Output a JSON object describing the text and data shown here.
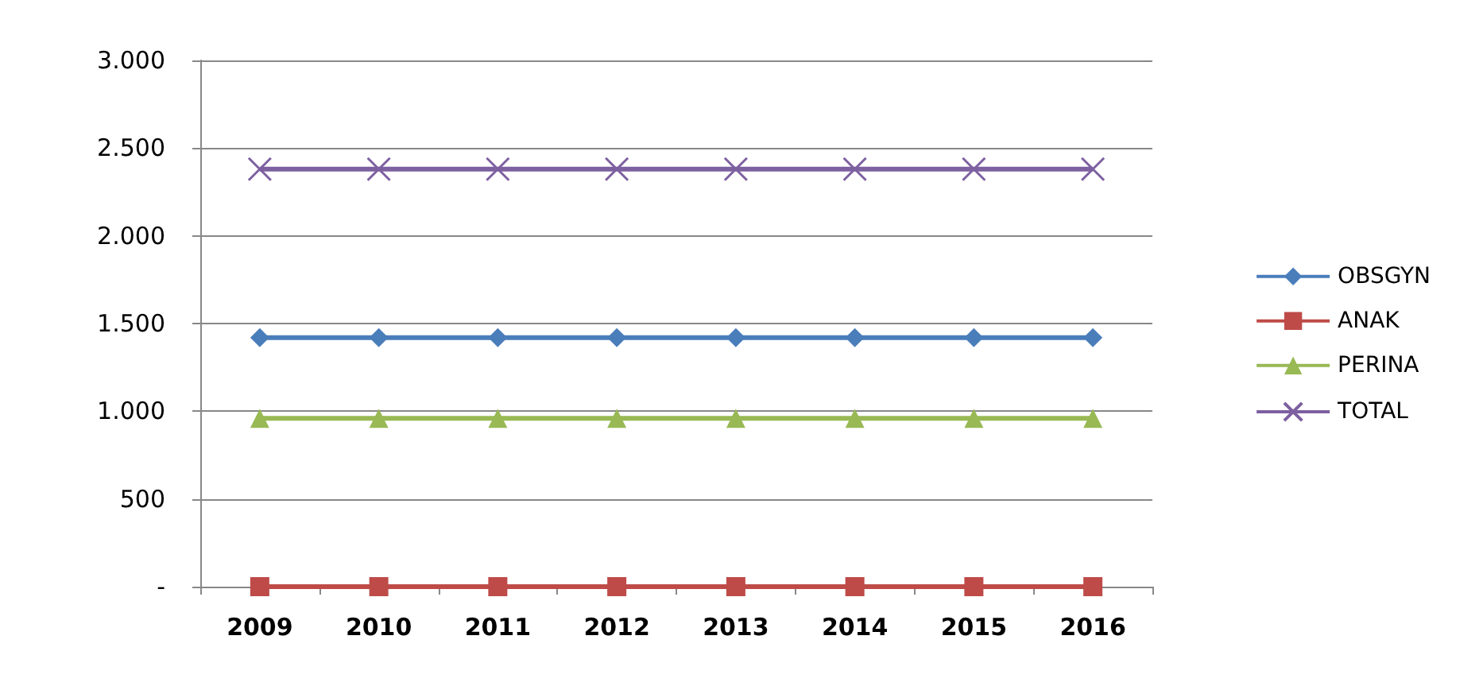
{
  "chart_data": {
    "type": "line",
    "categories": [
      "2009",
      "2010",
      "2011",
      "2012",
      "2013",
      "2014",
      "2015",
      "2016"
    ],
    "series": [
      {
        "name": "OBSGYN",
        "color": "#4a7ebb",
        "marker": "diamond",
        "values": [
          1420,
          1420,
          1420,
          1420,
          1420,
          1420,
          1420,
          1420
        ]
      },
      {
        "name": "ANAK",
        "color": "#be4b48",
        "marker": "square",
        "values": [
          0,
          0,
          0,
          0,
          0,
          0,
          0,
          0
        ]
      },
      {
        "name": "PERINA",
        "color": "#98b954",
        "marker": "triangle",
        "values": [
          960,
          960,
          960,
          960,
          960,
          960,
          960,
          960
        ]
      },
      {
        "name": "TOTAL",
        "color": "#7d60a0",
        "marker": "cross",
        "values": [
          2380,
          2380,
          2380,
          2380,
          2380,
          2380,
          2380,
          2380
        ]
      }
    ],
    "ylim": [
      0,
      3000
    ],
    "yticks": [
      {
        "value": 0,
        "label": "-"
      },
      {
        "value": 500,
        "label": "500"
      },
      {
        "value": 1000,
        "label": "1.000"
      },
      {
        "value": 1500,
        "label": "1.500"
      },
      {
        "value": 2000,
        "label": "2.000"
      },
      {
        "value": 2500,
        "label": "2.500"
      },
      {
        "value": 3000,
        "label": "3.000"
      }
    ],
    "grid": "y",
    "legend": "right"
  }
}
